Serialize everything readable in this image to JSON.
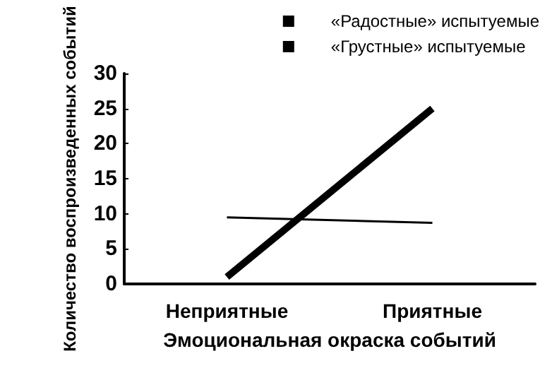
{
  "chart_data": {
    "type": "line",
    "categories": [
      "Неприятные",
      "Приятные"
    ],
    "series": [
      {
        "name": "«Радостные» испытуемые",
        "color": "#000000",
        "values": [
          1,
          25
        ]
      },
      {
        "name": "«Грустные» испытуемые",
        "color": "#000000",
        "values": [
          9.5,
          8.7
        ]
      }
    ],
    "ylim": [
      0,
      30
    ],
    "yticks": [
      0,
      5,
      10,
      15,
      20,
      25,
      30
    ],
    "ylabel": "Количество воспроизведенных событий",
    "xlabel": "Эмоциональная окраска событий",
    "legend": "top right",
    "grid": false,
    "marker": "none",
    "line_style": "solid"
  }
}
